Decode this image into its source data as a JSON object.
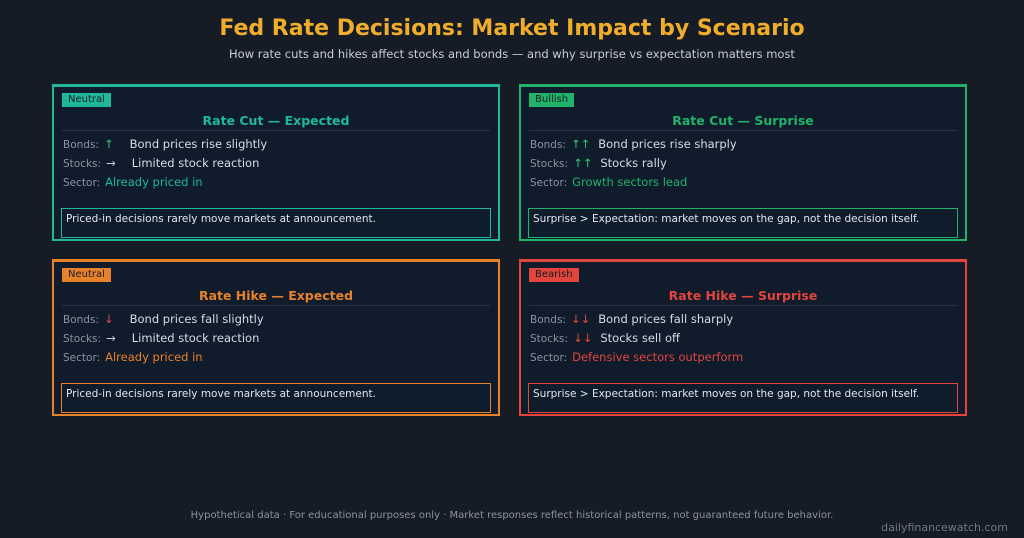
{
  "header": {
    "title": "Fed Rate Decisions: Market Impact by Scenario",
    "subtitle": "How rate cuts and hikes affect stocks and bonds — and why surprise vs expectation matters most"
  },
  "labels": {
    "bonds": "Bonds:",
    "stocks": "Stocks:",
    "sector": "Sector:"
  },
  "cards": [
    {
      "badge": "Neutral",
      "title": "Rate Cut — Expected",
      "color": "#1fb99a",
      "bonds_arrow": "↑",
      "bonds_arrow_color": "#2ecc71",
      "bonds_text": "Bond prices rise slightly",
      "stocks_arrow": "→",
      "stocks_arrow_color": "#c9ced6",
      "stocks_text": "Limited stock reaction",
      "sector_text": "Already priced in",
      "note": "Priced-in decisions rarely move markets at announcement."
    },
    {
      "badge": "Bullish",
      "title": "Rate Cut — Surprise",
      "color": "#22b36b",
      "bonds_arrow": "↑↑",
      "bonds_arrow_color": "#2ecc71",
      "bonds_text": "Bond prices rise sharply",
      "stocks_arrow": "↑↑",
      "stocks_arrow_color": "#2ecc71",
      "stocks_text": "Stocks rally",
      "sector_text": "Growth sectors lead",
      "note": "Surprise > Expectation: market moves on the gap, not the decision itself."
    },
    {
      "badge": "Neutral",
      "title": "Rate Hike — Expected",
      "color": "#e8822a",
      "bonds_arrow": "↓",
      "bonds_arrow_color": "#e74c3c",
      "bonds_text": "Bond prices fall slightly",
      "stocks_arrow": "→",
      "stocks_arrow_color": "#c9ced6",
      "stocks_text": "Limited stock reaction",
      "sector_text": "Already priced in",
      "note": "Priced-in decisions rarely move markets at announcement."
    },
    {
      "badge": "Bearish",
      "title": "Rate Hike — Surprise",
      "color": "#e2453c",
      "bonds_arrow": "↓↓",
      "bonds_arrow_color": "#e74c3c",
      "bonds_text": "Bond prices fall sharply",
      "stocks_arrow": "↓↓",
      "stocks_arrow_color": "#e74c3c",
      "stocks_text": "Stocks sell off",
      "sector_text": "Defensive sectors outperform",
      "note": "Surprise > Expectation: market moves on the gap, not the decision itself."
    }
  ],
  "footer": {
    "disclaimer": "Hypothetical data · For educational purposes only · Market responses reflect historical patterns, not guaranteed future behavior.",
    "source": "dailyfinancewatch.com"
  }
}
